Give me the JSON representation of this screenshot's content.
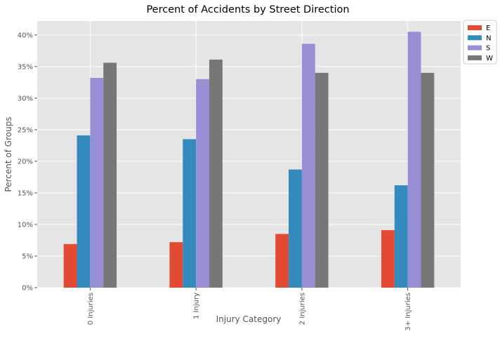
{
  "chart_data": {
    "type": "bar",
    "title": "Percent of Accidents by Street Direction",
    "xlabel": "Injury Category",
    "ylabel": "Percent of Groups",
    "categories": [
      "0 Injuries",
      "1 Injury",
      "2 Injuries",
      "3+ Injuries"
    ],
    "series": [
      {
        "name": "E",
        "color": "#E24A33",
        "values": [
          6.9,
          7.2,
          8.5,
          9.1
        ]
      },
      {
        "name": "N",
        "color": "#348ABD",
        "values": [
          24.1,
          23.5,
          18.7,
          16.2
        ]
      },
      {
        "name": "S",
        "color": "#988ED5",
        "values": [
          33.2,
          33.0,
          38.6,
          40.5
        ]
      },
      {
        "name": "W",
        "color": "#777777",
        "values": [
          35.6,
          36.1,
          34.0,
          34.0
        ]
      }
    ],
    "ylim": [
      0,
      42.2
    ],
    "yticks": [
      0,
      5,
      10,
      15,
      20,
      25,
      30,
      35,
      40
    ],
    "ytick_labels": [
      "0%",
      "5%",
      "10%",
      "15%",
      "20%",
      "25%",
      "30%",
      "35%",
      "40%"
    ],
    "grid": true,
    "legend_position": "outside-top-right",
    "background_color": "#E5E5E5"
  }
}
